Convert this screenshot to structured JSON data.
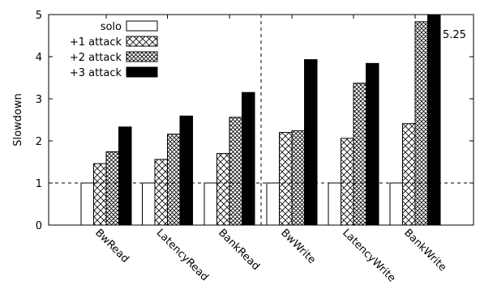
{
  "chart_data": {
    "type": "bar",
    "ylabel": "Slowdown",
    "xlabel": "",
    "ylim": [
      0,
      5
    ],
    "yticks": [
      "0",
      "1",
      "2",
      "3",
      "4",
      "5"
    ],
    "categories": [
      "BwRead",
      "LatencyRead",
      "BankRead",
      "BwWrite",
      "LatencyWrite",
      "BankWrite"
    ],
    "series": [
      {
        "name": "solo",
        "values": [
          1,
          1,
          1,
          1,
          1,
          1
        ]
      },
      {
        "name": "+1 attack",
        "values": [
          1.46,
          1.56,
          1.7,
          2.2,
          2.06,
          2.41
        ]
      },
      {
        "name": "+2 attack",
        "values": [
          1.74,
          2.16,
          2.56,
          2.24,
          3.37,
          4.83
        ]
      },
      {
        "name": "+3 attack",
        "values": [
          2.33,
          2.59,
          3.15,
          3.93,
          3.84,
          5.25
        ]
      }
    ],
    "reference_line": 1,
    "legend_position": "top-left",
    "grid": false,
    "annotations": [
      {
        "text": "5.25"
      }
    ]
  }
}
